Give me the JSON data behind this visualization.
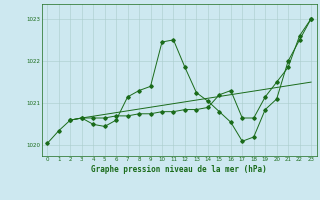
{
  "title": "Graphe pression niveau de la mer (hPa)",
  "background_color": "#cde8f0",
  "grid_color": "#aacccc",
  "line_color": "#1a6b1a",
  "text_color": "#1a6b1a",
  "xlim": [
    -0.5,
    23.5
  ],
  "ylim": [
    1019.75,
    1023.35
  ],
  "yticks": [
    1020,
    1021,
    1022,
    1023
  ],
  "xticks": [
    0,
    1,
    2,
    3,
    4,
    5,
    6,
    7,
    8,
    9,
    10,
    11,
    12,
    13,
    14,
    15,
    16,
    17,
    18,
    19,
    20,
    21,
    22,
    23
  ],
  "series1_x": [
    0,
    1,
    2,
    3,
    4,
    5,
    6,
    7,
    8,
    9,
    10,
    11,
    12,
    13,
    14,
    15,
    16,
    17,
    18,
    19,
    20,
    21,
    22,
    23
  ],
  "series1_y": [
    1020.05,
    1020.35,
    1020.6,
    1020.65,
    1020.5,
    1020.45,
    1020.6,
    1021.15,
    1021.3,
    1021.4,
    1022.45,
    1022.5,
    1021.85,
    1021.25,
    1021.05,
    1020.8,
    1020.55,
    1020.1,
    1020.2,
    1020.85,
    1021.1,
    1022.0,
    1022.5,
    1023.0
  ],
  "series2_x": [
    2,
    3,
    23
  ],
  "series2_y": [
    1020.6,
    1020.65,
    1021.5
  ],
  "series3_x": [
    2,
    3,
    4,
    5,
    6,
    7,
    8,
    9,
    10,
    11,
    12,
    13,
    14,
    15,
    16,
    17,
    18,
    19,
    20,
    21,
    22,
    23
  ],
  "series3_y": [
    1020.6,
    1020.65,
    1020.65,
    1020.65,
    1020.7,
    1020.7,
    1020.75,
    1020.75,
    1020.8,
    1020.8,
    1020.85,
    1020.85,
    1020.9,
    1021.2,
    1021.3,
    1020.65,
    1020.65,
    1021.15,
    1021.5,
    1021.85,
    1022.6,
    1023.0
  ],
  "title_fontsize": 5.5,
  "tick_fontsize": 4.0
}
